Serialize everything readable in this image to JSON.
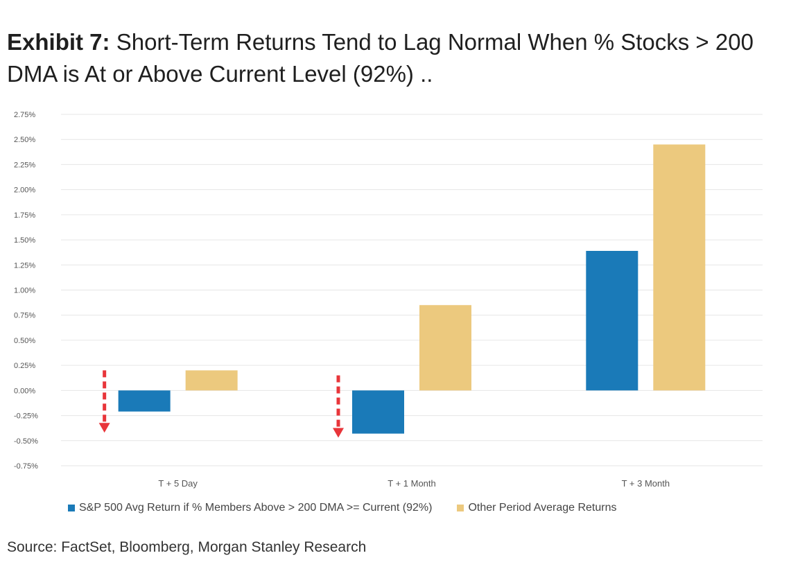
{
  "title": {
    "exhibit": "Exhibit 7:",
    "text": "Short-Term Returns Tend to Lag Normal When % Stocks > 200 DMA is At or Above Current Level (92%) .."
  },
  "source": "Source: FactSet, Bloomberg, Morgan Stanley Research",
  "colors": {
    "series_1": "#1a7ab8",
    "series_2": "#ecc97e",
    "arrow": "#e8353a",
    "grid": "#e6e6e6"
  },
  "chart_data": {
    "type": "bar",
    "title": "",
    "xlabel": "",
    "ylabel": "",
    "categories": [
      "T + 5 Day",
      "T + 1 Month",
      "T + 3 Month"
    ],
    "series": [
      {
        "name": "S&P 500 Avg Return if % Members Above > 200 DMA >= Current (92%)",
        "values": [
          -0.21,
          -0.43,
          1.39
        ]
      },
      {
        "name": "Other Period Average Returns",
        "values": [
          0.2,
          0.85,
          2.45
        ]
      }
    ],
    "ylim": [
      -0.75,
      2.75
    ],
    "yticks": [
      {
        "value": 2.75,
        "label": "2.75%"
      },
      {
        "value": 2.5,
        "label": "2.50%"
      },
      {
        "value": 2.25,
        "label": "2.25%"
      },
      {
        "value": 2.0,
        "label": "2.00%"
      },
      {
        "value": 1.75,
        "label": "1.75%"
      },
      {
        "value": 1.5,
        "label": "1.50%"
      },
      {
        "value": 1.25,
        "label": "1.25%"
      },
      {
        "value": 1.0,
        "label": "1.00%"
      },
      {
        "value": 0.75,
        "label": "0.75%"
      },
      {
        "value": 0.5,
        "label": "0.50%"
      },
      {
        "value": 0.25,
        "label": "0.25%"
      },
      {
        "value": 0.0,
        "label": "0.00%"
      },
      {
        "value": -0.25,
        "label": "-0.25%"
      },
      {
        "value": -0.5,
        "label": "-0.50%"
      },
      {
        "value": -0.75,
        "label": "-0.75%"
      }
    ],
    "grid": true,
    "legend_position": "bottom",
    "annotations": [
      {
        "type": "down-arrow",
        "category": "T + 5 Day",
        "from": 0.2,
        "to": -0.42
      },
      {
        "type": "down-arrow",
        "category": "T + 1 Month",
        "from": 0.15,
        "to": -0.47
      }
    ]
  }
}
